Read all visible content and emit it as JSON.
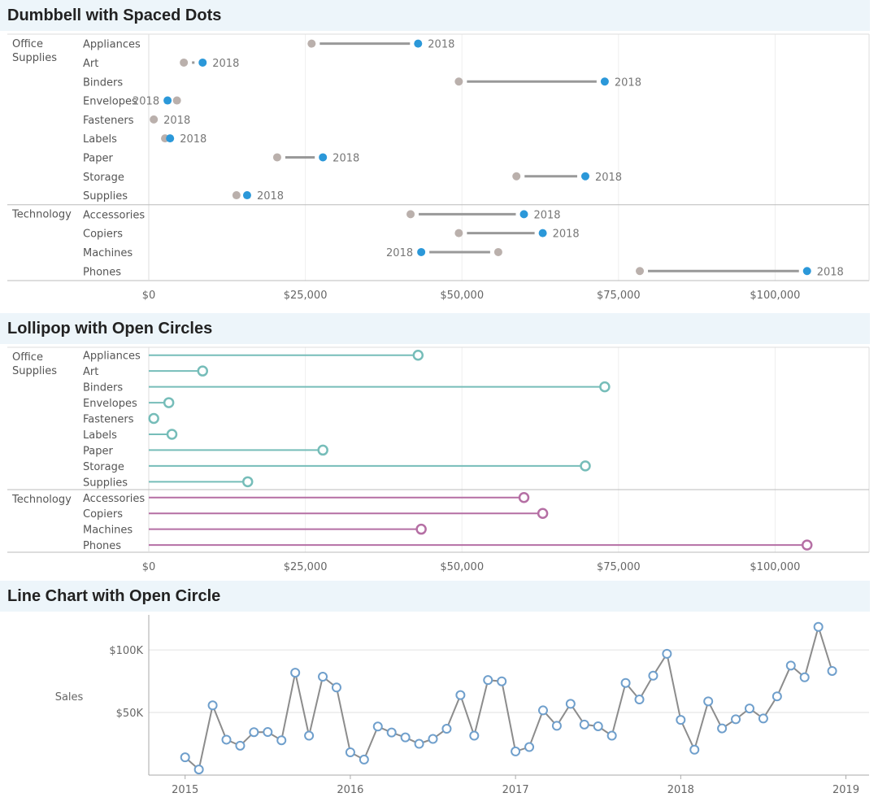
{
  "charts": {
    "dumbbell": {
      "title": "Dumbbell with Spaced Dots"
    },
    "lollipop": {
      "title": "Lollipop with Open Circles"
    },
    "line": {
      "title": "Line Chart with Open Circle"
    }
  },
  "colors": {
    "dumbbell_start": "#bab0ac",
    "dumbbell_end": "#2b98d9",
    "dumbbell_bar": "#999999",
    "lollipop_office": "#76bdb9",
    "lollipop_technology": "#b56fa4",
    "line": "#8c8c8c",
    "line_marker": "#6f9fcc",
    "title_bg": "#edf5fa"
  },
  "chart_data": [
    {
      "type": "dumbbell",
      "title": "Dumbbell with Spaced Dots",
      "x_ticks": [
        "$0",
        "$25,000",
        "$50,000",
        "$75,000",
        "$100,000"
      ],
      "x_tick_values": [
        0,
        25000,
        50000,
        75000,
        100000
      ],
      "xlim": [
        0,
        115000
      ],
      "end_label": "2018",
      "groups": [
        {
          "name": "Office Supplies",
          "name_lines": [
            "Office",
            "Supplies"
          ],
          "rows": [
            {
              "sub": "Appliances",
              "start": 26000,
              "end": 43000
            },
            {
              "sub": "Art",
              "start": 5600,
              "end": 8600
            },
            {
              "sub": "Binders",
              "start": 49500,
              "end": 72800
            },
            {
              "sub": "Envelopes",
              "start": 4500,
              "end": 3000
            },
            {
              "sub": "Fasteners",
              "start": 800,
              "end": 800
            },
            {
              "sub": "Labels",
              "start": 2600,
              "end": 3400
            },
            {
              "sub": "Paper",
              "start": 20500,
              "end": 27800
            },
            {
              "sub": "Storage",
              "start": 58700,
              "end": 69700
            },
            {
              "sub": "Supplies",
              "start": 14000,
              "end": 15700
            }
          ]
        },
        {
          "name": "Technology",
          "name_lines": [
            "Technology"
          ],
          "rows": [
            {
              "sub": "Accessories",
              "start": 41800,
              "end": 59900
            },
            {
              "sub": "Copiers",
              "start": 49500,
              "end": 62900
            },
            {
              "sub": "Machines",
              "start": 55800,
              "end": 43500
            },
            {
              "sub": "Phones",
              "start": 78400,
              "end": 105100
            }
          ]
        }
      ]
    },
    {
      "type": "lollipop",
      "title": "Lollipop with Open Circles",
      "x_ticks": [
        "$0",
        "$25,000",
        "$50,000",
        "$75,000",
        "$100,000"
      ],
      "x_tick_values": [
        0,
        25000,
        50000,
        75000,
        100000
      ],
      "xlim": [
        0,
        115000
      ],
      "groups": [
        {
          "name": "Office Supplies",
          "name_lines": [
            "Office",
            "Supplies"
          ],
          "rows": [
            {
              "sub": "Appliances",
              "value": 43000
            },
            {
              "sub": "Art",
              "value": 8600
            },
            {
              "sub": "Binders",
              "value": 72800
            },
            {
              "sub": "Envelopes",
              "value": 3200
            },
            {
              "sub": "Fasteners",
              "value": 800
            },
            {
              "sub": "Labels",
              "value": 3700
            },
            {
              "sub": "Paper",
              "value": 27800
            },
            {
              "sub": "Storage",
              "value": 69700
            },
            {
              "sub": "Supplies",
              "value": 15800
            }
          ]
        },
        {
          "name": "Technology",
          "name_lines": [
            "Technology"
          ],
          "rows": [
            {
              "sub": "Accessories",
              "value": 59900
            },
            {
              "sub": "Copiers",
              "value": 62900
            },
            {
              "sub": "Machines",
              "value": 43500
            },
            {
              "sub": "Phones",
              "value": 105100
            }
          ]
        }
      ]
    },
    {
      "type": "line",
      "title": "Line Chart with Open Circle",
      "ylabel": "Sales",
      "y_ticks": [
        "$50K",
        "$100K"
      ],
      "y_tick_values": [
        50000,
        100000
      ],
      "ylim": [
        0,
        128000
      ],
      "x_ticks": [
        "2015",
        "2016",
        "2017",
        "2018",
        "2019"
      ],
      "x_tick_values": [
        2015,
        2016,
        2017,
        2018,
        2019
      ],
      "xlim": [
        2014.78,
        2019.14
      ],
      "x_start": 2015.0,
      "x_step": 0.08333,
      "values": [
        14200,
        4500,
        55700,
        28300,
        23500,
        34300,
        34400,
        27800,
        81800,
        31500,
        78600,
        70000,
        18200,
        12400,
        38800,
        34000,
        30100,
        25000,
        28900,
        37000,
        63900,
        31500,
        75900,
        74900,
        18900,
        22400,
        51700,
        39400,
        56900,
        40400,
        39000,
        31500,
        73600,
        60400,
        79400,
        96900,
        44100,
        20300,
        58900,
        37300,
        44600,
        53200,
        45200,
        62900,
        87500,
        78100,
        118400,
        83200
      ]
    }
  ]
}
